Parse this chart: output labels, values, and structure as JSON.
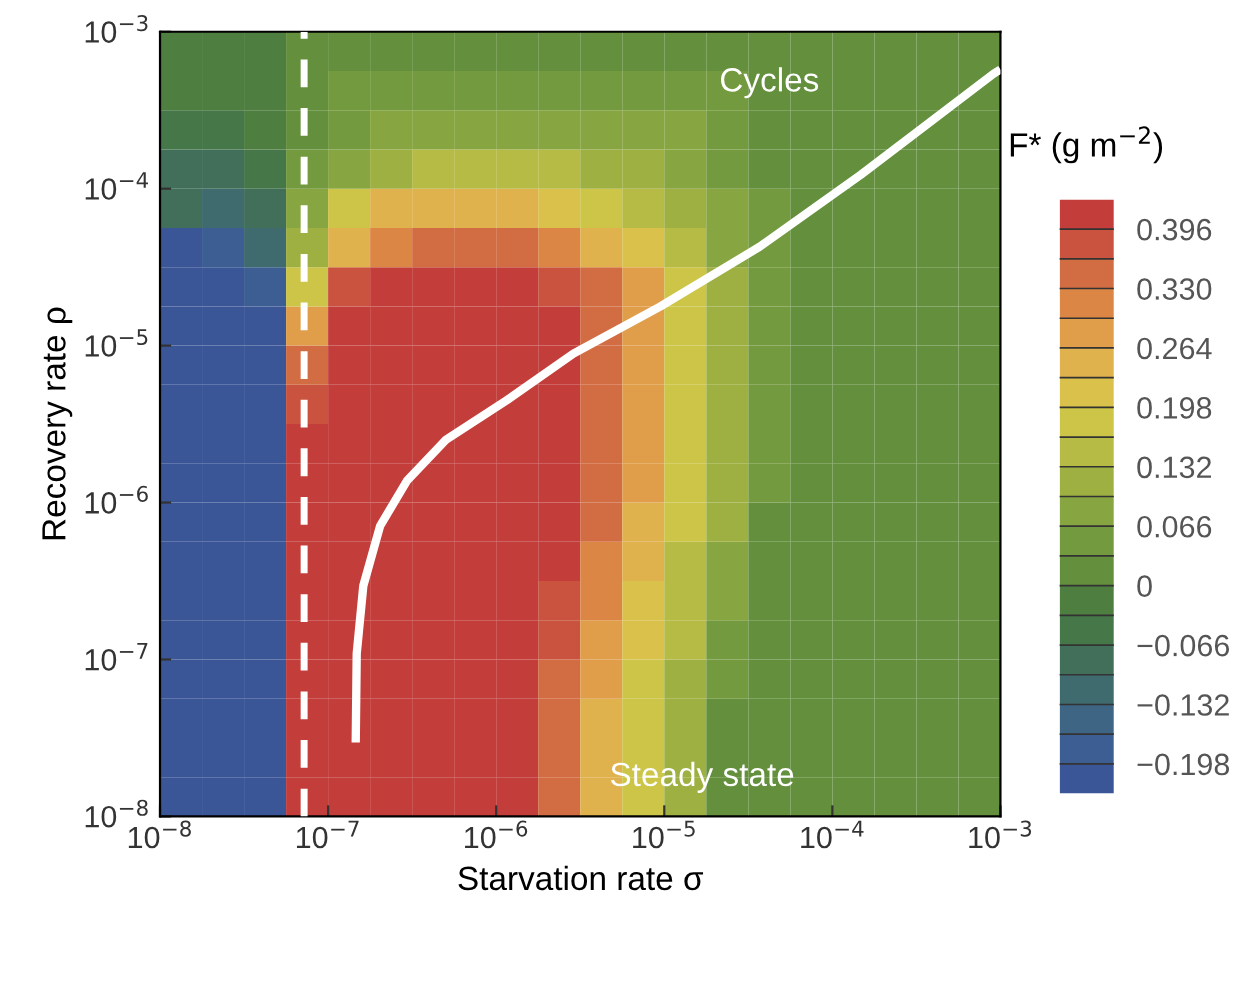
{
  "chart_data": {
    "type": "heatmap",
    "xlabel": "Starvation rate σ",
    "ylabel": "Recovery rate ρ",
    "clabel": "F* (g m$^{−2}$)",
    "log": "xy",
    "xlim": [
      1e-08,
      0.001
    ],
    "ylim": [
      1e-08,
      0.001
    ],
    "xticks": [
      {
        "value": 1e-08,
        "label": "10$^{−8}$"
      },
      {
        "value": 1e-07,
        "label": "10$^{−7}$"
      },
      {
        "value": 1e-06,
        "label": "10$^{−6}$"
      },
      {
        "value": 1e-05,
        "label": "10$^{−5}$"
      },
      {
        "value": 0.0001,
        "label": "10$^{−4}$"
      },
      {
        "value": 0.001,
        "label": "10$^{−3}$"
      }
    ],
    "yticks": [
      {
        "value": 1e-08,
        "label": "10$^{−8}$"
      },
      {
        "value": 1e-07,
        "label": "10$^{−7}$"
      },
      {
        "value": 1e-06,
        "label": "10$^{−6}$"
      },
      {
        "value": 1e-05,
        "label": "10$^{−5}$"
      },
      {
        "value": 0.0001,
        "label": "10$^{−4}$"
      },
      {
        "value": 0.001,
        "label": "10$^{−3}$"
      }
    ],
    "clim": [
      -0.231,
      0.429
    ],
    "cticks": [
      {
        "value": -0.198,
        "label": "−0.198"
      },
      {
        "value": -0.132,
        "label": "−0.132"
      },
      {
        "value": -0.066,
        "label": "−0.066"
      },
      0,
      {
        "value": 0.066,
        "label": "0.066"
      },
      {
        "value": 0.132,
        "label": "0.132"
      },
      {
        "value": 0.198,
        "label": "0.198"
      },
      {
        "value": 0.264,
        "label": "0.264"
      },
      {
        "value": 0.33,
        "label": "0.330"
      },
      {
        "value": 0.396,
        "label": "0.396"
      }
    ],
    "colors": [
      "#3b5697",
      "#3d5e93",
      "#3e6584",
      "#3f6a6e",
      "#416f5a",
      "#457748",
      "#4e7e40",
      "#64903e",
      "#739a3e",
      "#87a540",
      "#9fb043",
      "#b6bb45",
      "#ccc548",
      "#d9c14b",
      "#e0b24e",
      "#e09e4b",
      "#dc8646",
      "#d26c42",
      "#c9533e",
      "#c33e3b"
    ],
    "cells": [
      [
        -0.02,
        -0.02,
        -0.02,
        0.02,
        0.02,
        0.02,
        0.02,
        0.02,
        0.02,
        0.02,
        0.02,
        0.02,
        0.02,
        0.02,
        0.02,
        0.02,
        0.02,
        0.02,
        0.02,
        0.02
      ],
      [
        -0.02,
        -0.02,
        -0.02,
        0.02,
        0.05,
        0.05,
        0.05,
        0.05,
        0.05,
        0.05,
        0.05,
        0.05,
        0.05,
        0.05,
        0.02,
        0.02,
        0.02,
        0.02,
        0.02,
        0.02
      ],
      [
        -0.05,
        -0.05,
        -0.02,
        0.02,
        0.05,
        0.08,
        0.08,
        0.08,
        0.08,
        0.08,
        0.08,
        0.08,
        0.08,
        0.05,
        0.02,
        0.02,
        0.02,
        0.02,
        0.02,
        0.02
      ],
      [
        -0.08,
        -0.08,
        -0.05,
        0.05,
        0.08,
        0.12,
        0.15,
        0.15,
        0.15,
        0.15,
        0.12,
        0.12,
        0.08,
        0.05,
        0.02,
        0.02,
        0.02,
        0.02,
        0.02,
        0.02
      ],
      [
        -0.08,
        -0.12,
        -0.08,
        0.08,
        0.18,
        0.25,
        0.25,
        0.25,
        0.25,
        0.21,
        0.18,
        0.15,
        0.12,
        0.08,
        0.05,
        0.02,
        0.02,
        0.02,
        0.02,
        0.02
      ],
      [
        -0.21,
        -0.18,
        -0.12,
        0.12,
        0.25,
        0.31,
        0.35,
        0.35,
        0.35,
        0.31,
        0.25,
        0.21,
        0.15,
        0.08,
        0.05,
        0.02,
        0.02,
        0.02,
        0.02,
        0.02
      ],
      [
        -0.21,
        -0.21,
        -0.18,
        0.18,
        0.38,
        0.41,
        0.41,
        0.41,
        0.41,
        0.38,
        0.35,
        0.28,
        0.18,
        0.12,
        0.05,
        0.02,
        0.02,
        0.02,
        0.02,
        0.02
      ],
      [
        -0.21,
        -0.21,
        -0.21,
        0.28,
        0.41,
        0.41,
        0.41,
        0.41,
        0.41,
        0.41,
        0.35,
        0.28,
        0.18,
        0.12,
        0.05,
        0.02,
        0.02,
        0.02,
        0.02,
        0.02
      ],
      [
        -0.21,
        -0.21,
        -0.21,
        0.35,
        0.41,
        0.41,
        0.41,
        0.41,
        0.41,
        0.41,
        0.35,
        0.28,
        0.18,
        0.12,
        0.05,
        0.02,
        0.02,
        0.02,
        0.02,
        0.02
      ],
      [
        -0.21,
        -0.21,
        -0.21,
        0.38,
        0.41,
        0.41,
        0.41,
        0.41,
        0.41,
        0.41,
        0.35,
        0.28,
        0.18,
        0.12,
        0.05,
        0.02,
        0.02,
        0.02,
        0.02,
        0.02
      ],
      [
        -0.21,
        -0.21,
        -0.21,
        0.41,
        0.41,
        0.41,
        0.41,
        0.41,
        0.41,
        0.41,
        0.35,
        0.28,
        0.18,
        0.12,
        0.05,
        0.02,
        0.02,
        0.02,
        0.02,
        0.02
      ],
      [
        -0.21,
        -0.21,
        -0.21,
        0.41,
        0.41,
        0.41,
        0.41,
        0.41,
        0.41,
        0.41,
        0.35,
        0.28,
        0.18,
        0.12,
        0.05,
        0.02,
        0.02,
        0.02,
        0.02,
        0.02
      ],
      [
        -0.21,
        -0.21,
        -0.21,
        0.41,
        0.41,
        0.41,
        0.41,
        0.41,
        0.41,
        0.41,
        0.35,
        0.25,
        0.18,
        0.12,
        0.02,
        0.02,
        0.02,
        0.02,
        0.02,
        0.02
      ],
      [
        -0.21,
        -0.21,
        -0.21,
        0.41,
        0.41,
        0.41,
        0.41,
        0.41,
        0.41,
        0.41,
        0.31,
        0.25,
        0.15,
        0.08,
        0.02,
        0.02,
        0.02,
        0.02,
        0.02,
        0.02
      ],
      [
        -0.21,
        -0.21,
        -0.21,
        0.41,
        0.41,
        0.41,
        0.41,
        0.41,
        0.41,
        0.38,
        0.31,
        0.21,
        0.15,
        0.08,
        0.02,
        0.02,
        0.02,
        0.02,
        0.02,
        0.02
      ],
      [
        -0.21,
        -0.21,
        -0.21,
        0.41,
        0.41,
        0.41,
        0.41,
        0.41,
        0.41,
        0.38,
        0.28,
        0.21,
        0.15,
        0.05,
        0.02,
        0.02,
        0.02,
        0.02,
        0.02,
        0.02
      ],
      [
        -0.21,
        -0.21,
        -0.21,
        0.41,
        0.41,
        0.41,
        0.41,
        0.41,
        0.41,
        0.35,
        0.28,
        0.18,
        0.12,
        0.05,
        0.02,
        0.02,
        0.02,
        0.02,
        0.02,
        0.02
      ],
      [
        -0.21,
        -0.21,
        -0.21,
        0.41,
        0.41,
        0.41,
        0.41,
        0.41,
        0.41,
        0.35,
        0.25,
        0.18,
        0.12,
        0.02,
        0.02,
        0.02,
        0.02,
        0.02,
        0.02,
        0.02
      ],
      [
        -0.21,
        -0.21,
        -0.21,
        0.41,
        0.41,
        0.41,
        0.41,
        0.41,
        0.41,
        0.35,
        0.25,
        0.18,
        0.12,
        0.02,
        0.02,
        0.02,
        0.02,
        0.02,
        0.02,
        0.02
      ],
      [
        -0.21,
        -0.21,
        -0.21,
        0.41,
        0.41,
        0.41,
        0.41,
        0.41,
        0.41,
        0.35,
        0.25,
        0.18,
        0.12,
        0.02,
        0.02,
        0.02,
        0.02,
        0.02,
        0.02,
        0.02
      ]
    ],
    "series": [
      {
        "type": "line",
        "color": "#ffffff",
        "x": [
          1.46e-07,
          1.48e-07,
          1.62e-07,
          2.04e-07,
          2.95e-07,
          5e-07,
          1.15e-06,
          2.88e-06,
          9.5e-06,
          3.7e-05,
          0.000148,
          0.00091,
          0.001
        ],
        "values": [
          2.96e-08,
          1.09e-07,
          2.95e-07,
          7.1e-07,
          1.38e-06,
          2.5e-06,
          4.47e-06,
          8.9e-06,
          1.78e-05,
          4.27e-05,
          0.000123,
          0.00054,
          0.000575
        ]
      }
    ],
    "ref_lines": [
      {
        "axis": "x",
        "value": 7.2e-08,
        "color": "#ffffff",
        "line_style": "dashed"
      }
    ],
    "annotations": [
      "Cycles",
      "Steady state"
    ],
    "grid": false,
    "legend": false
  }
}
